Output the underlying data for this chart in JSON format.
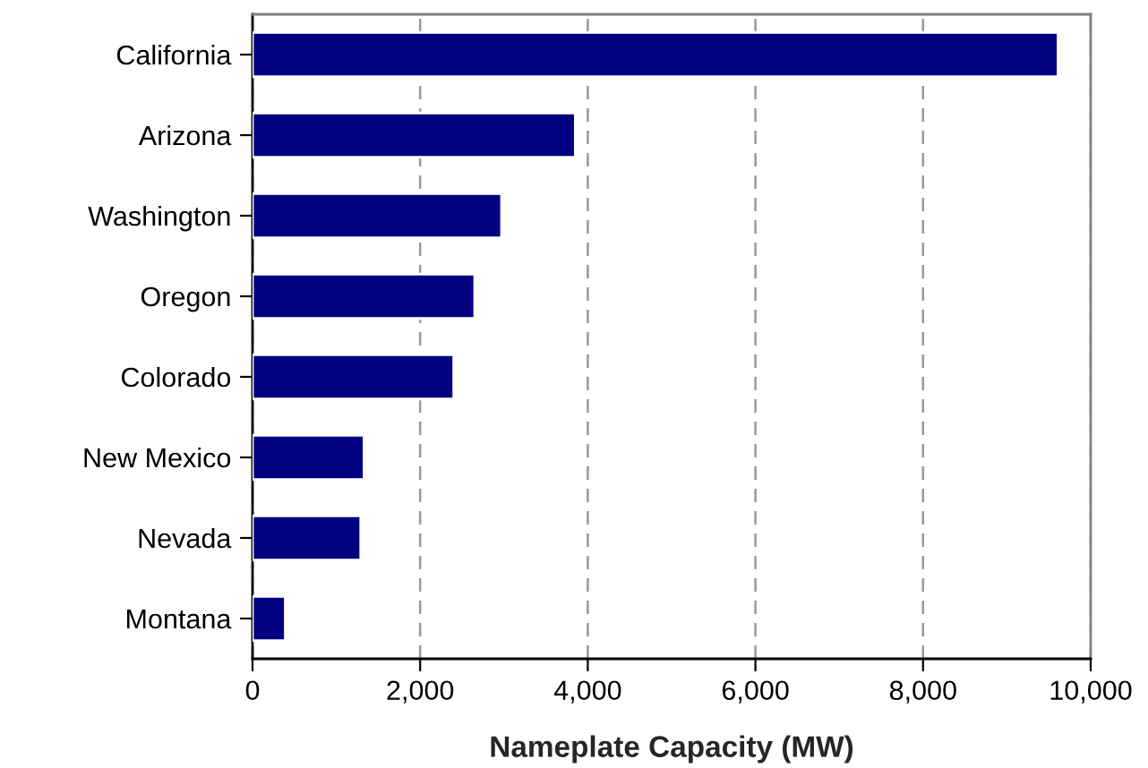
{
  "chart_data": {
    "type": "bar",
    "orientation": "horizontal",
    "xlabel": "Nameplate Capacity (MW)",
    "categories": [
      "California",
      "Arizona",
      "Washington",
      "Oregon",
      "Colorado",
      "New Mexico",
      "Nevada",
      "Montana"
    ],
    "values": [
      9610,
      3850,
      2970,
      2650,
      2400,
      1330,
      1290,
      390
    ],
    "color": "#000080",
    "xlim": [
      0,
      10000
    ],
    "xticks": [
      0,
      {
        "value": 2000,
        "label": "2,000"
      },
      {
        "value": 4000,
        "label": "4,000"
      },
      {
        "value": 6000,
        "label": "6,000"
      },
      {
        "value": 8000,
        "label": "8,000"
      },
      {
        "value": 10000,
        "label": "10,000"
      }
    ],
    "grid": "x",
    "line_style": "dashed"
  }
}
